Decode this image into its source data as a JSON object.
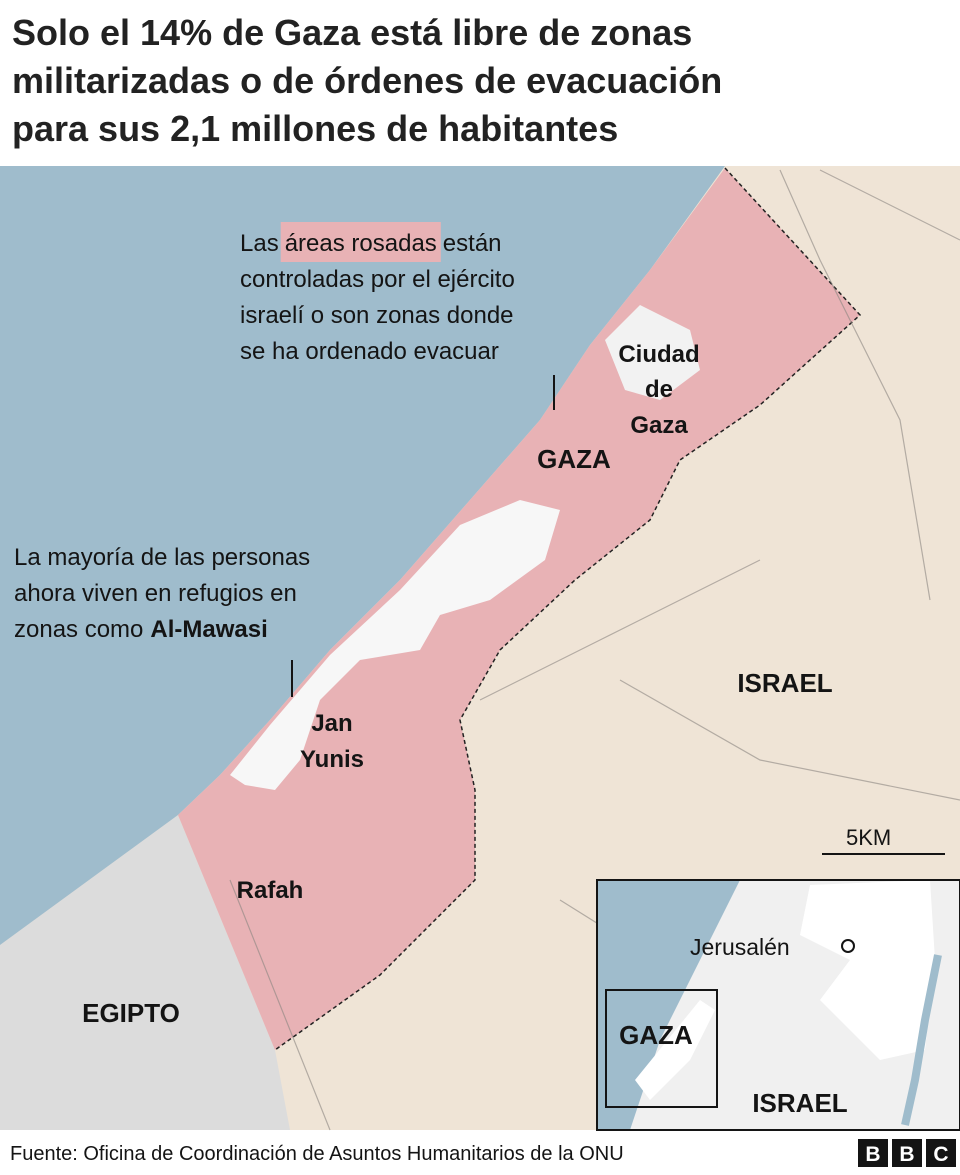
{
  "title_lines": [
    "Solo el 14% de Gaza está libre de zonas",
    "militarizadas o de órdenes de evacuación",
    "para sus 2,1 millones de habitantes"
  ],
  "annotation_pink": {
    "before": "Las",
    "highlight": "áreas rosadas",
    "after": "están",
    "lines": [
      "controladas por el ejército",
      "israelí o son zonas donde",
      "se ha ordenado evacuar"
    ]
  },
  "annotation_people": {
    "lines": [
      "La mayoría de las personas",
      "ahora viven en refugios en",
      "zonas como"
    ],
    "bold": "Al-Mawasi"
  },
  "places": {
    "gaza_city": [
      "Ciudad",
      "de",
      "Gaza"
    ],
    "gaza": "GAZA",
    "khan_yunis": [
      "Jan",
      "Yunis"
    ],
    "rafah": "Rafah",
    "israel": "ISRAEL",
    "egypt": "EGIPTO"
  },
  "scale": "5KM",
  "inset": {
    "jerusalem": "Jerusalén",
    "gaza": "GAZA",
    "israel": "ISRAEL"
  },
  "source": "Fuente: Oficina de Coordinación de Asuntos Humanitarios de la ONU",
  "logo": [
    "B",
    "B",
    "C"
  ]
}
